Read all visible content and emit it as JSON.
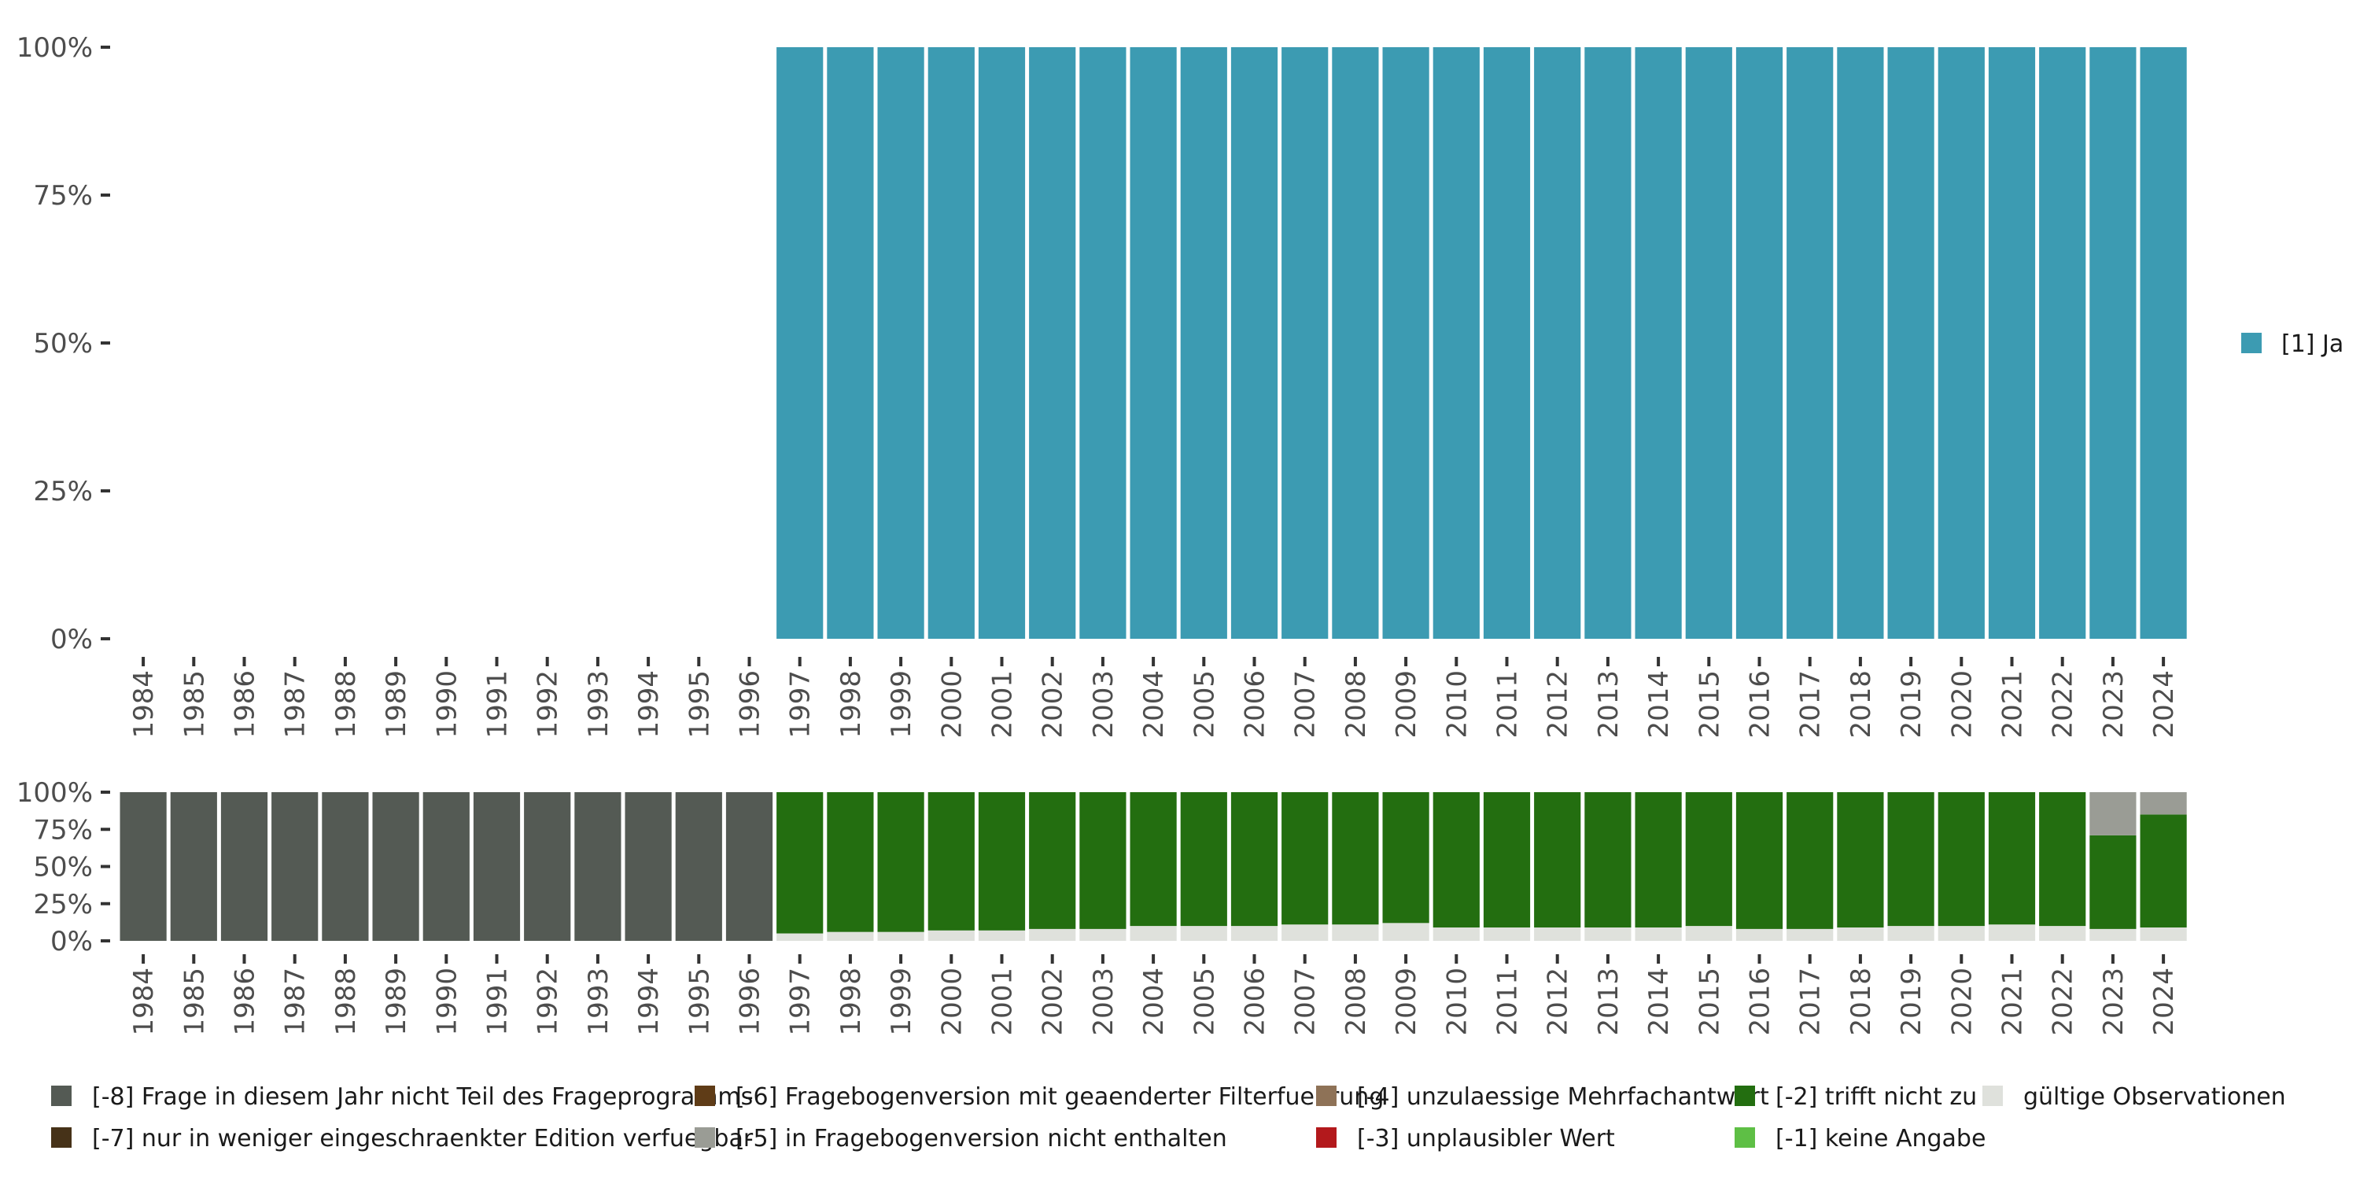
{
  "chart_data": [
    {
      "type": "bar",
      "stacked": true,
      "years": [
        "1984",
        "1985",
        "1986",
        "1987",
        "1988",
        "1989",
        "1990",
        "1991",
        "1992",
        "1993",
        "1994",
        "1995",
        "1996",
        "1997",
        "1998",
        "1999",
        "2000",
        "2001",
        "2002",
        "2003",
        "2004",
        "2005",
        "2006",
        "2007",
        "2008",
        "2009",
        "2010",
        "2011",
        "2012",
        "2013",
        "2014",
        "2015",
        "2016",
        "2017",
        "2018",
        "2019",
        "2020",
        "2021",
        "2022",
        "2023",
        "2024"
      ],
      "ylim": [
        0,
        100
      ],
      "yticks": [
        "0%",
        "25%",
        "50%",
        "75%",
        "100%"
      ],
      "series": [
        {
          "name": "[1] Ja",
          "color": "#3c9bb2",
          "values": [
            0,
            0,
            0,
            0,
            0,
            0,
            0,
            0,
            0,
            0,
            0,
            0,
            0,
            100,
            100,
            100,
            100,
            100,
            100,
            100,
            100,
            100,
            100,
            100,
            100,
            100,
            100,
            100,
            100,
            100,
            100,
            100,
            100,
            100,
            100,
            100,
            100,
            100,
            100,
            100,
            100
          ]
        }
      ],
      "legend": [
        {
          "label": "[1] Ja",
          "color": "#3c9bb2"
        }
      ]
    },
    {
      "type": "bar",
      "stacked": true,
      "years": [
        "1984",
        "1985",
        "1986",
        "1987",
        "1988",
        "1989",
        "1990",
        "1991",
        "1992",
        "1993",
        "1994",
        "1995",
        "1996",
        "1997",
        "1998",
        "1999",
        "2000",
        "2001",
        "2002",
        "2003",
        "2004",
        "2005",
        "2006",
        "2007",
        "2008",
        "2009",
        "2010",
        "2011",
        "2012",
        "2013",
        "2014",
        "2015",
        "2016",
        "2017",
        "2018",
        "2019",
        "2020",
        "2021",
        "2022",
        "2023",
        "2024"
      ],
      "ylim": [
        0,
        100
      ],
      "yticks": [
        "0%",
        "25%",
        "50%",
        "75%",
        "100%"
      ],
      "series": [
        {
          "name": "gültige Observationen",
          "color": "#dfe1dc",
          "values": [
            0,
            0,
            0,
            0,
            0,
            0,
            0,
            0,
            0,
            0,
            0,
            0,
            0,
            5,
            6,
            6,
            7,
            7,
            8,
            8,
            10,
            10,
            10,
            11,
            11,
            12,
            9,
            9,
            9,
            9,
            9,
            10,
            8,
            8,
            9,
            10,
            10,
            11,
            10,
            8,
            9
          ]
        },
        {
          "name": "[-2] trifft nicht zu",
          "color": "#236e10",
          "values": [
            0,
            0,
            0,
            0,
            0,
            0,
            0,
            0,
            0,
            0,
            0,
            0,
            0,
            95,
            94,
            94,
            93,
            93,
            92,
            92,
            90,
            90,
            90,
            89,
            89,
            88,
            91,
            91,
            91,
            91,
            91,
            90,
            92,
            92,
            91,
            90,
            90,
            89,
            90,
            63,
            76
          ]
        },
        {
          "name": "[-5] in Fragebogenversion nicht enthalten",
          "color": "#9a9c95",
          "values": [
            0,
            0,
            0,
            0,
            0,
            0,
            0,
            0,
            0,
            0,
            0,
            0,
            0,
            0,
            0,
            0,
            0,
            0,
            0,
            0,
            0,
            0,
            0,
            0,
            0,
            0,
            0,
            0,
            0,
            0,
            0,
            0,
            0,
            0,
            0,
            0,
            0,
            0,
            0,
            29,
            15
          ]
        },
        {
          "name": "[-8] Frage in diesem Jahr nicht Teil des Frageprogramms",
          "color": "#545a54",
          "values": [
            100,
            100,
            100,
            100,
            100,
            100,
            100,
            100,
            100,
            100,
            100,
            100,
            100,
            0,
            0,
            0,
            0,
            0,
            0,
            0,
            0,
            0,
            0,
            0,
            0,
            0,
            0,
            0,
            0,
            0,
            0,
            0,
            0,
            0,
            0,
            0,
            0,
            0,
            0,
            0,
            0
          ]
        }
      ],
      "legend": [
        {
          "label": "[-8] Frage in diesem Jahr nicht Teil des Frageprogramms",
          "color": "#545a54"
        },
        {
          "label": "[-7] nur in weniger eingeschraenkter Edition verfuegbar",
          "color": "#463218"
        },
        {
          "label": "[-6] Fragebogenversion mit geaenderter Filterfuehrung",
          "color": "#5f3c17"
        },
        {
          "label": "[-5] in Fragebogenversion nicht enthalten",
          "color": "#9a9c95"
        },
        {
          "label": "[-4] unzulaessige Mehrfachantwort",
          "color": "#8e7257"
        },
        {
          "label": "[-3] unplausibler Wert",
          "color": "#b3191c"
        },
        {
          "label": "[-2] trifft nicht zu",
          "color": "#236e10"
        },
        {
          "label": "[-1] keine Angabe",
          "color": "#5ebf45"
        },
        {
          "label": "gültige Observationen",
          "color": "#dfe1dc"
        }
      ]
    }
  ]
}
